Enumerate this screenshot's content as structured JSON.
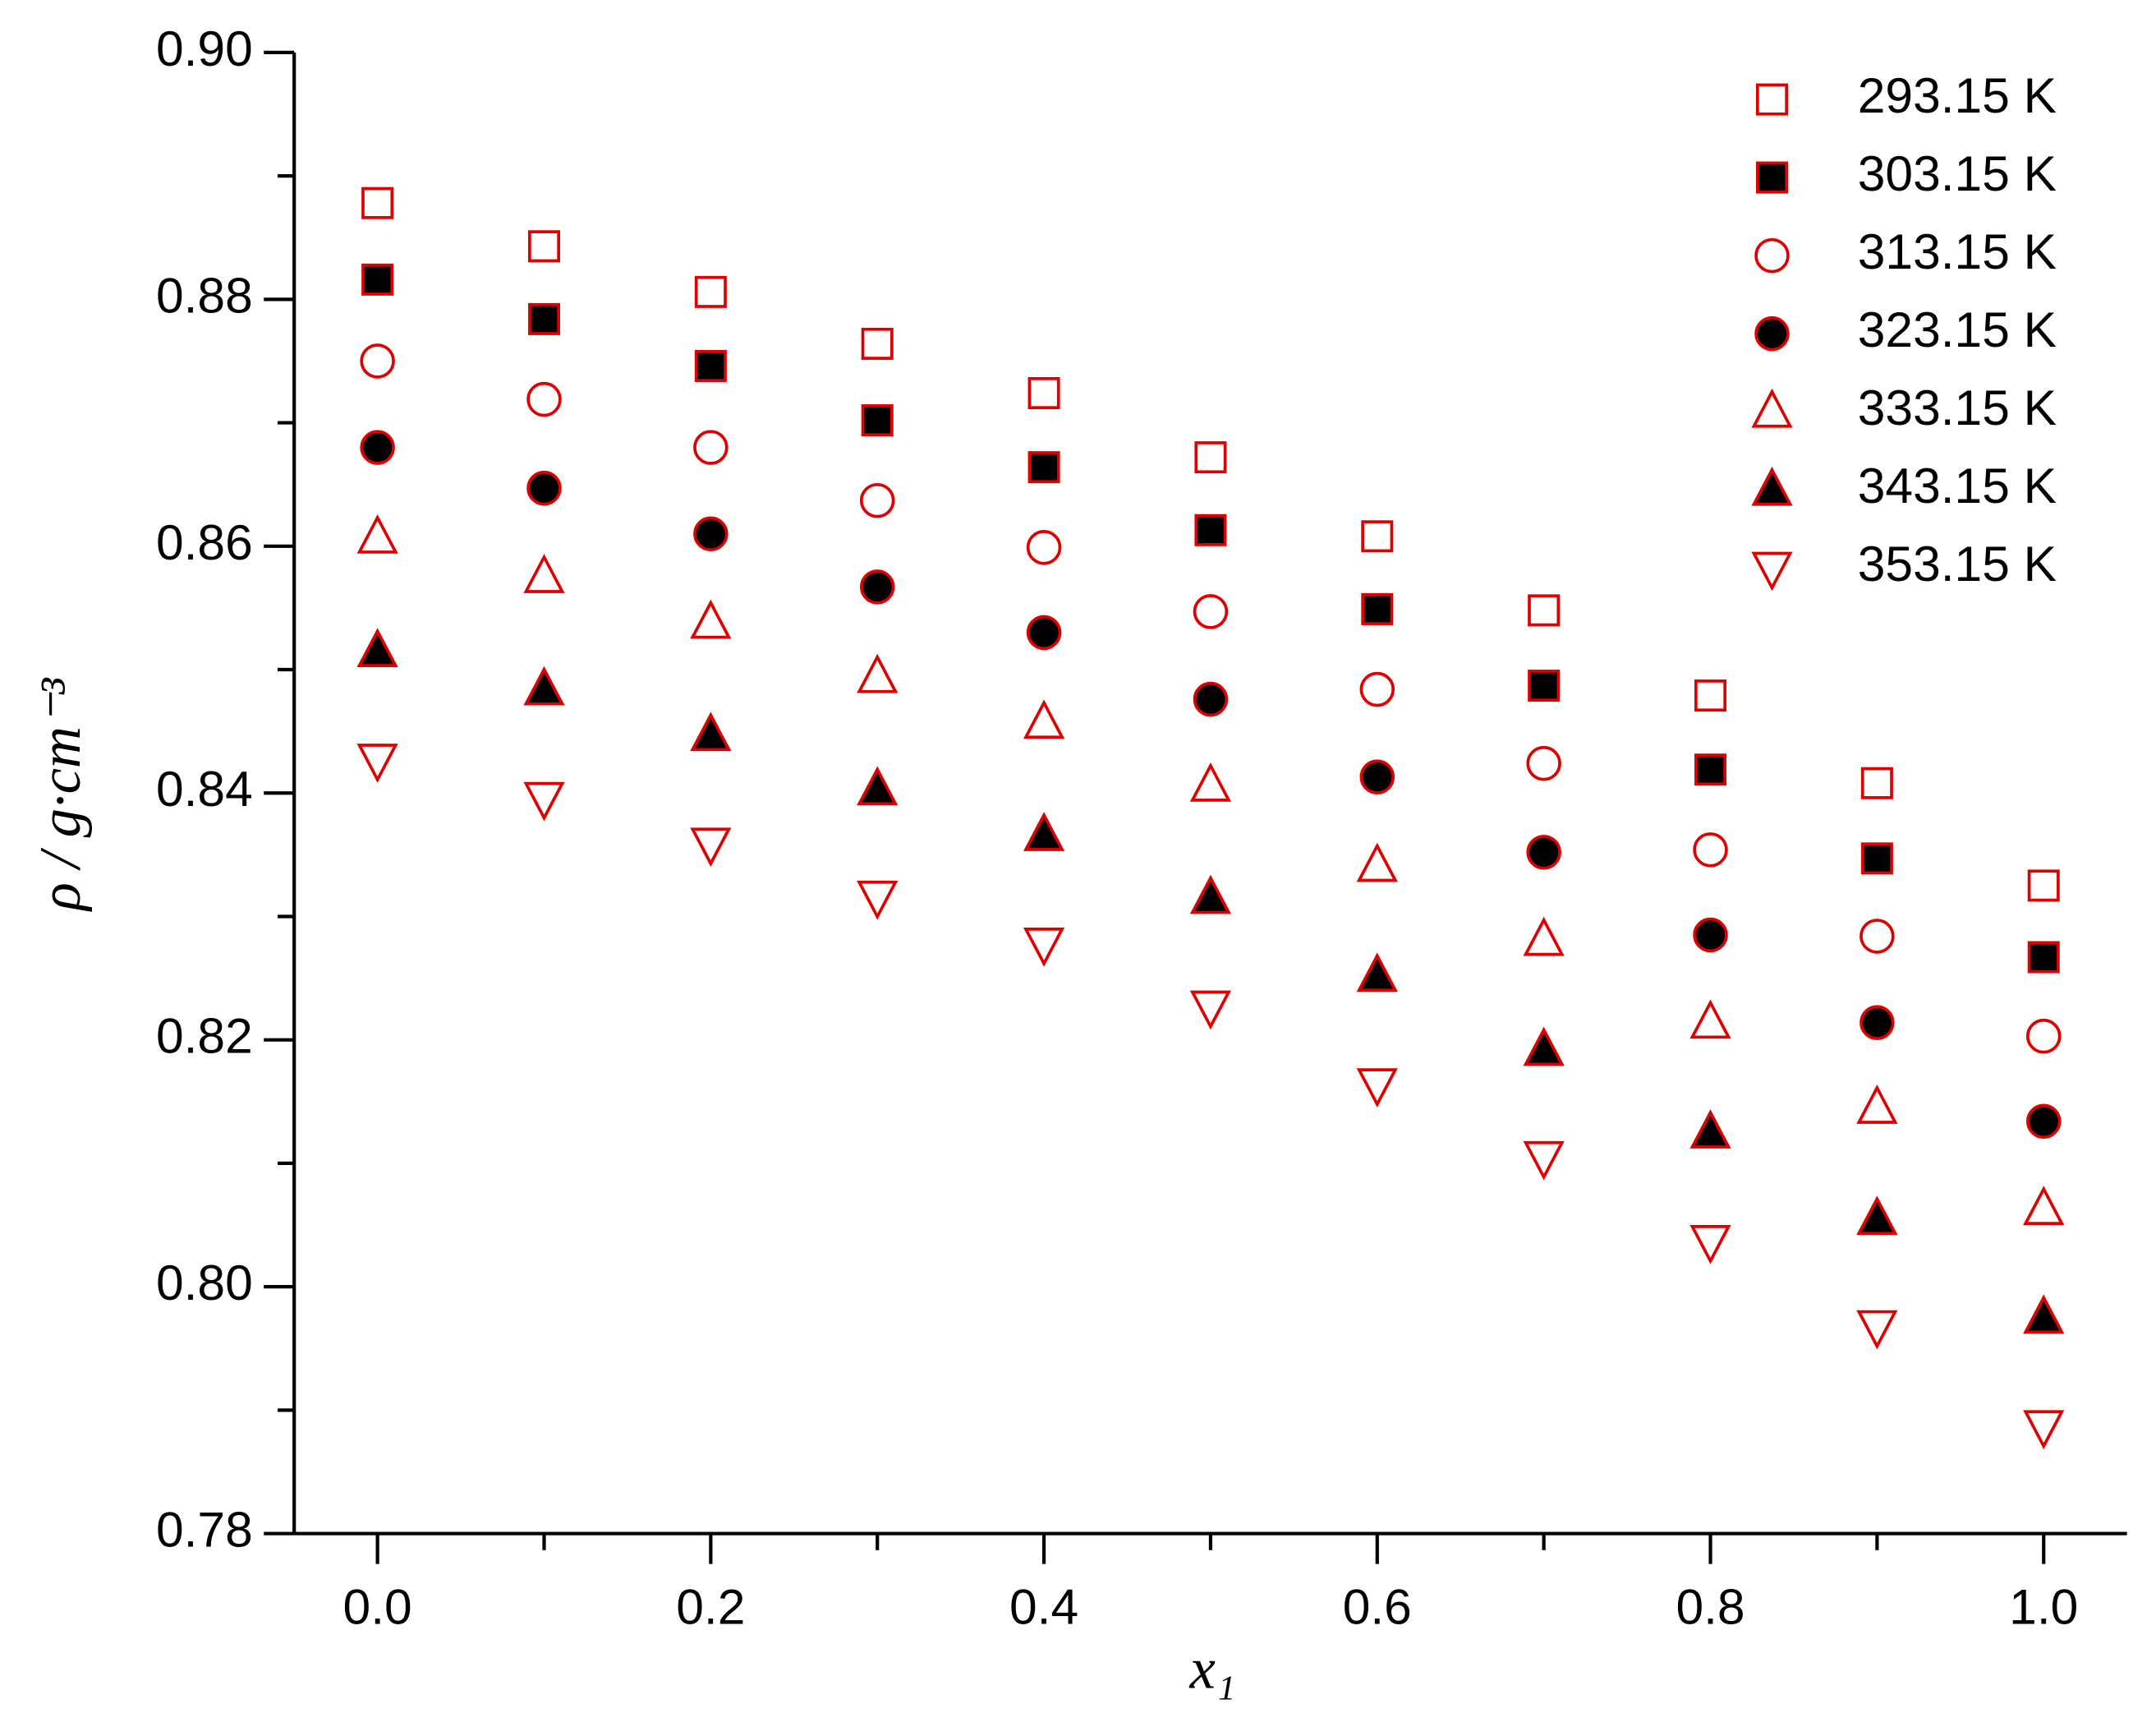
{
  "chart_data": {
    "type": "scatter",
    "xlabel": "x₁",
    "ylabel": "ρ / g·cm⁻³",
    "xlim": [
      -0.05,
      1.05
    ],
    "ylim": [
      0.78,
      0.9
    ],
    "xticks": [
      {
        "value": 0,
        "label": "0.0"
      },
      0.2,
      0.4,
      0.6,
      0.8,
      {
        "value": 1,
        "label": "1.0"
      }
    ],
    "yticks": [
      0.78,
      {
        "value": 0.8,
        "label": "0.80"
      },
      0.82,
      0.84,
      0.86,
      0.88,
      {
        "value": 0.9,
        "label": "0.90"
      }
    ],
    "legend": "upper right",
    "x": [
      0,
      0.1,
      0.2,
      0.3,
      0.4,
      0.5,
      0.6,
      0.7,
      0.8,
      0.9,
      1
    ],
    "series": [
      {
        "name": "293.15 K",
        "marker": "square",
        "color": "#e00000",
        "fill": "#ffffff",
        "values": [
          0.8878,
          0.8843,
          0.8806,
          0.8764,
          0.8724,
          0.8672,
          0.8608,
          0.8548,
          0.8479,
          0.8408,
          0.8325
        ]
      },
      {
        "name": "303.15 K",
        "marker": "square",
        "color": "#e00000",
        "fill": "#000000",
        "values": [
          0.8816,
          0.8784,
          0.8746,
          0.8702,
          0.8664,
          0.8613,
          0.8549,
          0.8487,
          0.8419,
          0.8347,
          0.8267
        ]
      },
      {
        "name": "313.15 K",
        "marker": "circle",
        "color": "#e00000",
        "fill": "#ffffff",
        "values": [
          0.875,
          0.8719,
          0.868,
          0.8637,
          0.8599,
          0.8547,
          0.8484,
          0.8424,
          0.8354,
          0.8284,
          0.8203
        ]
      },
      {
        "name": "323.15 K",
        "marker": "circle",
        "color": "#e00000",
        "fill": "#000000",
        "values": [
          0.868,
          0.8647,
          0.861,
          0.8567,
          0.853,
          0.8476,
          0.8413,
          0.8352,
          0.8285,
          0.8214,
          0.8134
        ]
      },
      {
        "name": "333.15 K",
        "marker": "triangle-up",
        "color": "#e00000",
        "fill": "#ffffff",
        "values": [
          0.8607,
          0.8575,
          0.8538,
          0.8494,
          0.8457,
          0.8406,
          0.8341,
          0.8281,
          0.8214,
          0.8145,
          0.8063
        ]
      },
      {
        "name": "343.15 K",
        "marker": "triangle-up",
        "color": "#e00000",
        "fill": "#000000",
        "values": [
          0.8515,
          0.8484,
          0.8447,
          0.8403,
          0.8366,
          0.8315,
          0.8252,
          0.8192,
          0.8125,
          0.8055,
          0.7975
        ]
      },
      {
        "name": "353.15 K",
        "marker": "triangle-down",
        "color": "#e00000",
        "fill": "#ffffff",
        "values": [
          0.8427,
          0.8396,
          0.8359,
          0.8316,
          0.8278,
          0.8227,
          0.8164,
          0.8105,
          0.8037,
          0.7968,
          0.7887
        ]
      }
    ]
  }
}
